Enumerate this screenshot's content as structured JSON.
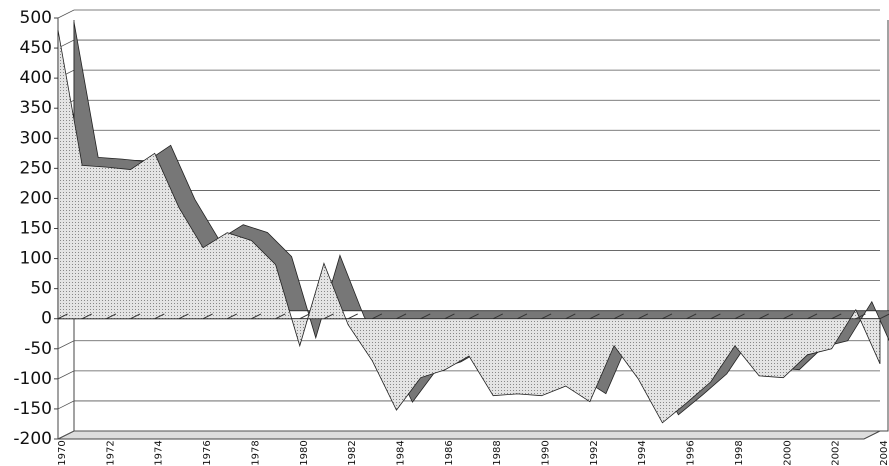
{
  "chart_data": {
    "type": "area3d",
    "categories": [
      "1970",
      null,
      "1972",
      null,
      "1974",
      null,
      "1976",
      null,
      "1978",
      null,
      "1980",
      null,
      "1982",
      null,
      "1984",
      null,
      "1986",
      null,
      "1988",
      null,
      "1990",
      null,
      "1992",
      null,
      "1994",
      null,
      "1996",
      null,
      "1998",
      null,
      "2000",
      null,
      "2002",
      null,
      "2004"
    ],
    "values": [
      480,
      255,
      252,
      248,
      275,
      185,
      118,
      143,
      130,
      90,
      -45,
      92,
      -10,
      -70,
      -152,
      -98,
      -85,
      -62,
      -128,
      -125,
      -128,
      -112,
      -138,
      -45,
      -100,
      -173,
      -140,
      -105,
      -45,
      -95,
      -98,
      -60,
      -50,
      15,
      -75
    ],
    "ylim": [
      -200,
      500
    ],
    "yticks": [
      -200,
      -150,
      -100,
      -50,
      0,
      50,
      100,
      150,
      200,
      250,
      300,
      350,
      400,
      450,
      500
    ],
    "grid": true,
    "color": "#d8d8d8"
  }
}
